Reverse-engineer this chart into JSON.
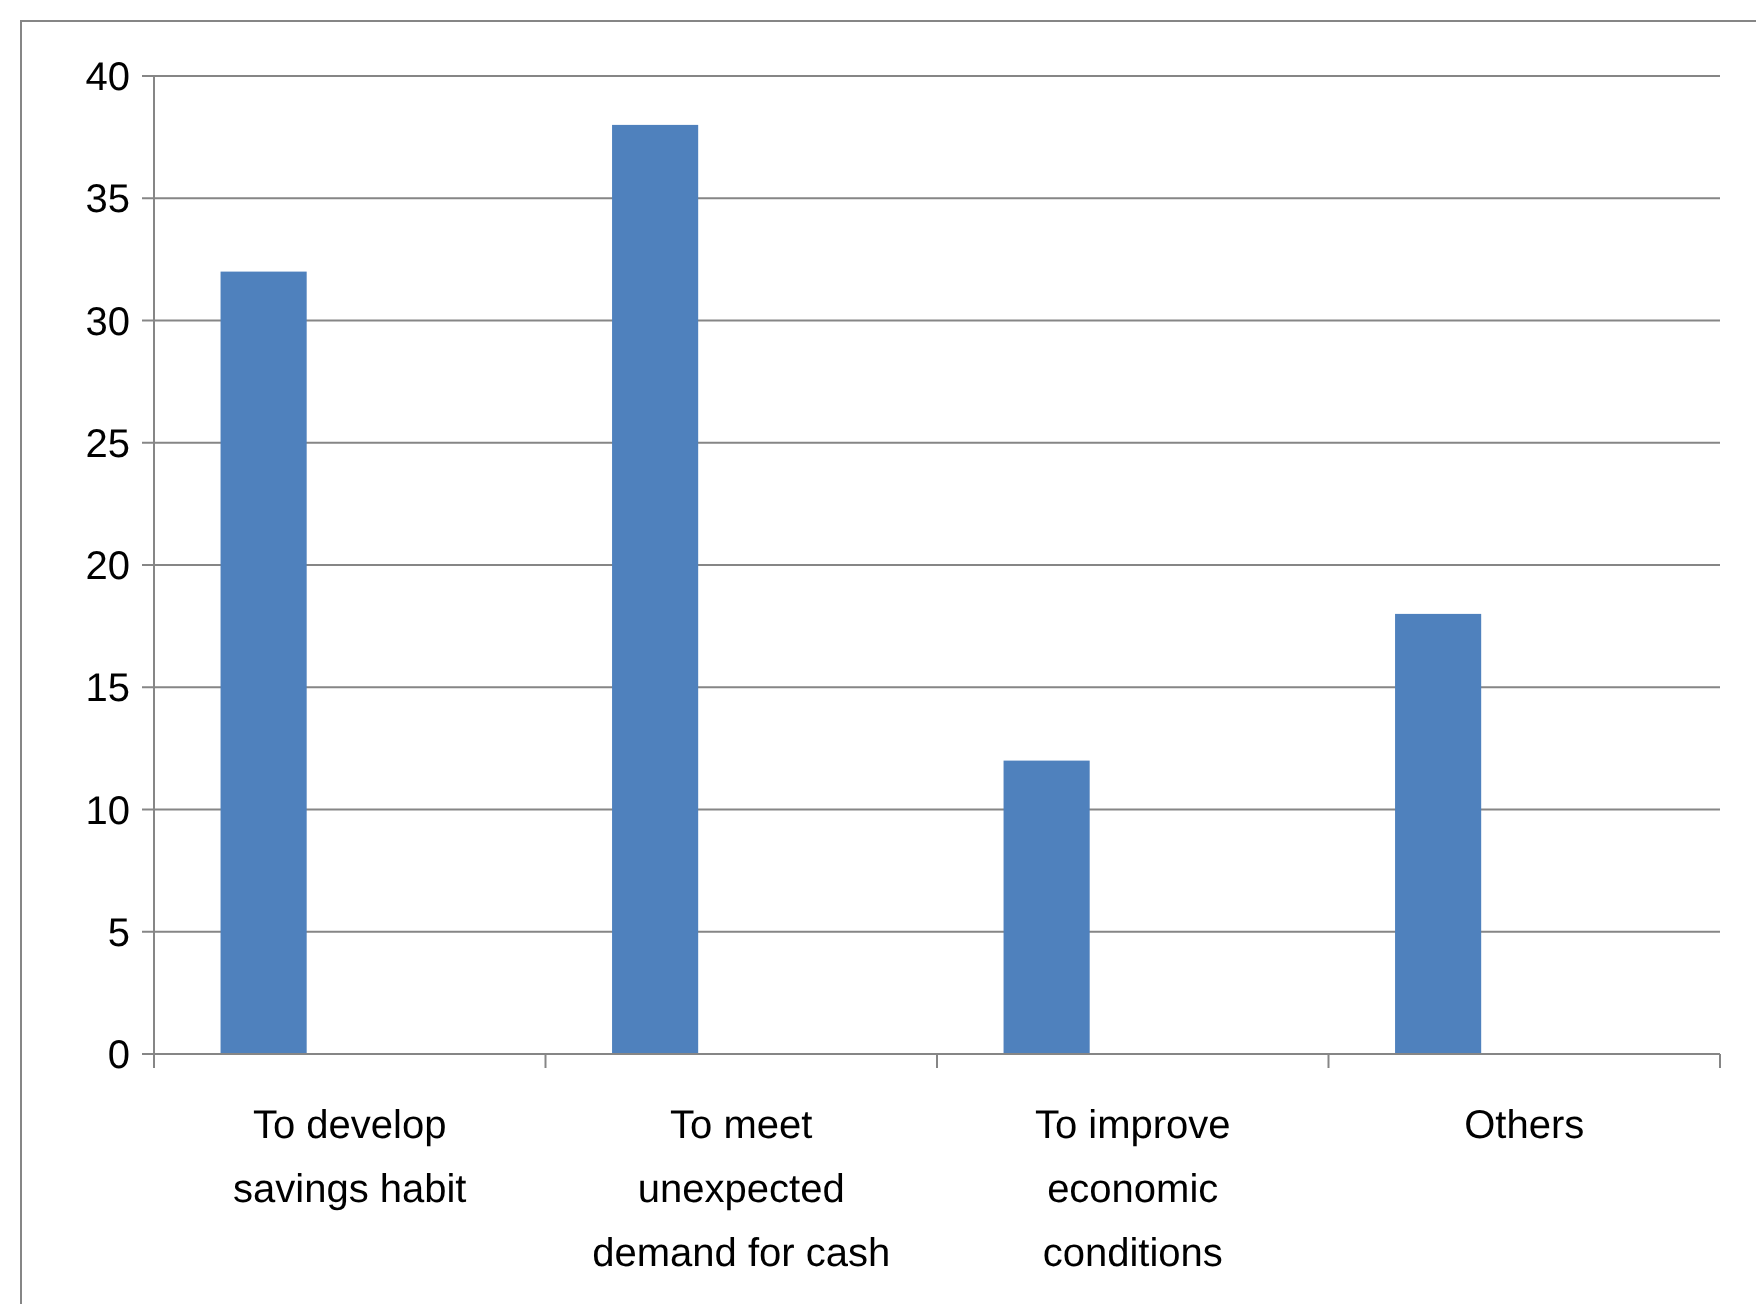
{
  "chart_data": {
    "type": "bar",
    "categories": [
      "To develop savings habit",
      "To meet unexpected demand for cash",
      "To improve economic conditions",
      "Others"
    ],
    "values": [
      32,
      38,
      12,
      18
    ],
    "color": "#4f81bd",
    "ylim": [
      0,
      40
    ],
    "yticks": [
      0,
      5,
      10,
      15,
      20,
      25,
      30,
      35,
      40
    ],
    "grid": "y"
  }
}
